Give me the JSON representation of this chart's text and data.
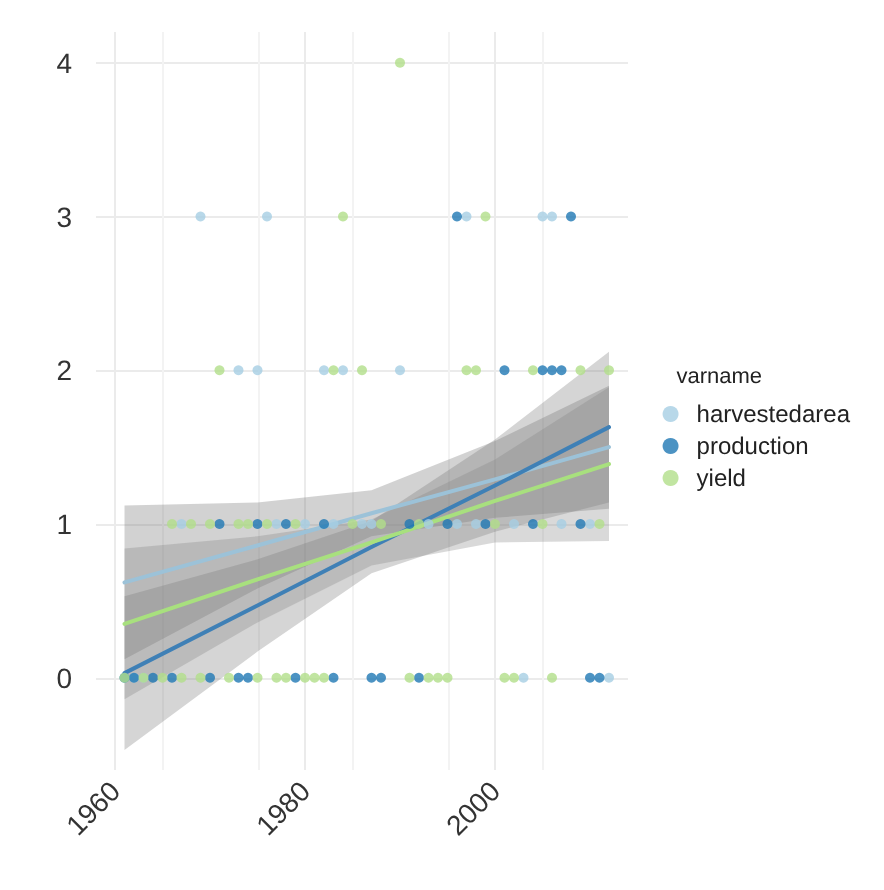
{
  "chart_data": {
    "type": "scatter",
    "legend_title": "varname",
    "legend": "right",
    "grid": true,
    "marker": "circle",
    "xlim": [
      1958,
      2014
    ],
    "xticks": [
      1960,
      1980,
      2000
    ],
    "ylim": [
      -0.6,
      4.2
    ],
    "yticks": [
      0,
      1,
      2,
      3,
      4
    ],
    "series": [
      {
        "name": "harvestedarea",
        "color": "#a6cee3",
        "x": [
          1961,
          1962,
          1963,
          1967,
          1969,
          1973,
          1975,
          1976,
          1977,
          1980,
          1982,
          1983,
          1984,
          1985,
          1986,
          1987,
          1988,
          1990,
          1993,
          1996,
          1997,
          1998,
          2002,
          2003,
          2005,
          2006,
          2007,
          2010,
          2012
        ],
        "values": [
          0,
          0,
          0,
          1,
          3,
          2,
          2,
          3,
          1,
          1,
          2,
          1,
          2,
          null,
          1,
          1,
          null,
          2,
          1,
          1,
          3,
          1,
          1,
          0,
          3,
          3,
          1,
          1,
          0
        ]
      },
      {
        "name": "production",
        "color": "#1f78b4",
        "x": [
          1961,
          1962,
          1964,
          1966,
          1970,
          1971,
          1973,
          1974,
          1975,
          1978,
          1979,
          1982,
          1983,
          1987,
          1988,
          1991,
          1992,
          1995,
          1996,
          1999,
          2001,
          2004,
          2005,
          2006,
          2007,
          2008,
          2009,
          2010,
          2011
        ],
        "values": [
          0,
          0,
          0,
          0,
          0,
          1,
          0,
          0,
          1,
          1,
          0,
          1,
          0,
          0,
          0,
          1,
          0,
          1,
          3,
          1,
          2,
          1,
          2,
          2,
          2,
          3,
          1,
          0,
          0
        ]
      },
      {
        "name": "yield",
        "color": "#b2df8a",
        "x": [
          1961,
          1963,
          1965,
          1966,
          1967,
          1968,
          1969,
          1970,
          1971,
          1972,
          1973,
          1974,
          1975,
          1976,
          1977,
          1978,
          1979,
          1980,
          1981,
          1982,
          1983,
          1984,
          1985,
          1986,
          1988,
          1990,
          1991,
          1992,
          1993,
          1994,
          1995,
          1997,
          1998,
          1999,
          2000,
          2001,
          2002,
          2004,
          2005,
          2006,
          2009,
          2011,
          2012
        ],
        "values": [
          0,
          0,
          0,
          1,
          0,
          1,
          0,
          1,
          2,
          0,
          1,
          1,
          0,
          1,
          0,
          0,
          1,
          0,
          0,
          0,
          2,
          3,
          1,
          2,
          1,
          4,
          0,
          1,
          0,
          0,
          0,
          2,
          2,
          3,
          1,
          0,
          0,
          2,
          1,
          0,
          2,
          1,
          2
        ]
      },
      {
        "type": "line",
        "marker": "none",
        "color": "#9cc2d8",
        "x": [
          1961,
          1975,
          1987,
          2000,
          2012
        ],
        "values": [
          0.62,
          0.86,
          1.07,
          1.29,
          1.5
        ],
        "lower": [
          0.12,
          0.58,
          0.92,
          1.04,
          1.1
        ],
        "upper": [
          1.12,
          1.14,
          1.22,
          1.54,
          1.9
        ]
      },
      {
        "type": "line",
        "marker": "none",
        "color": "#3f80b6",
        "x": [
          1961,
          1975,
          1987,
          2000,
          2012
        ],
        "values": [
          0.03,
          0.47,
          0.85,
          1.25,
          1.63
        ],
        "lower": [
          -0.47,
          0.17,
          0.68,
          0.95,
          1.14
        ],
        "upper": [
          0.53,
          0.77,
          1.02,
          1.55,
          2.12
        ]
      },
      {
        "type": "line",
        "marker": "none",
        "color": "#a8e07e",
        "x": [
          1961,
          1975,
          1987,
          2000,
          2012
        ],
        "values": [
          0.35,
          0.64,
          0.88,
          1.15,
          1.39
        ],
        "lower": [
          -0.14,
          0.36,
          0.73,
          0.88,
          0.89
        ],
        "upper": [
          0.84,
          0.92,
          1.03,
          1.42,
          1.89
        ]
      }
    ]
  }
}
